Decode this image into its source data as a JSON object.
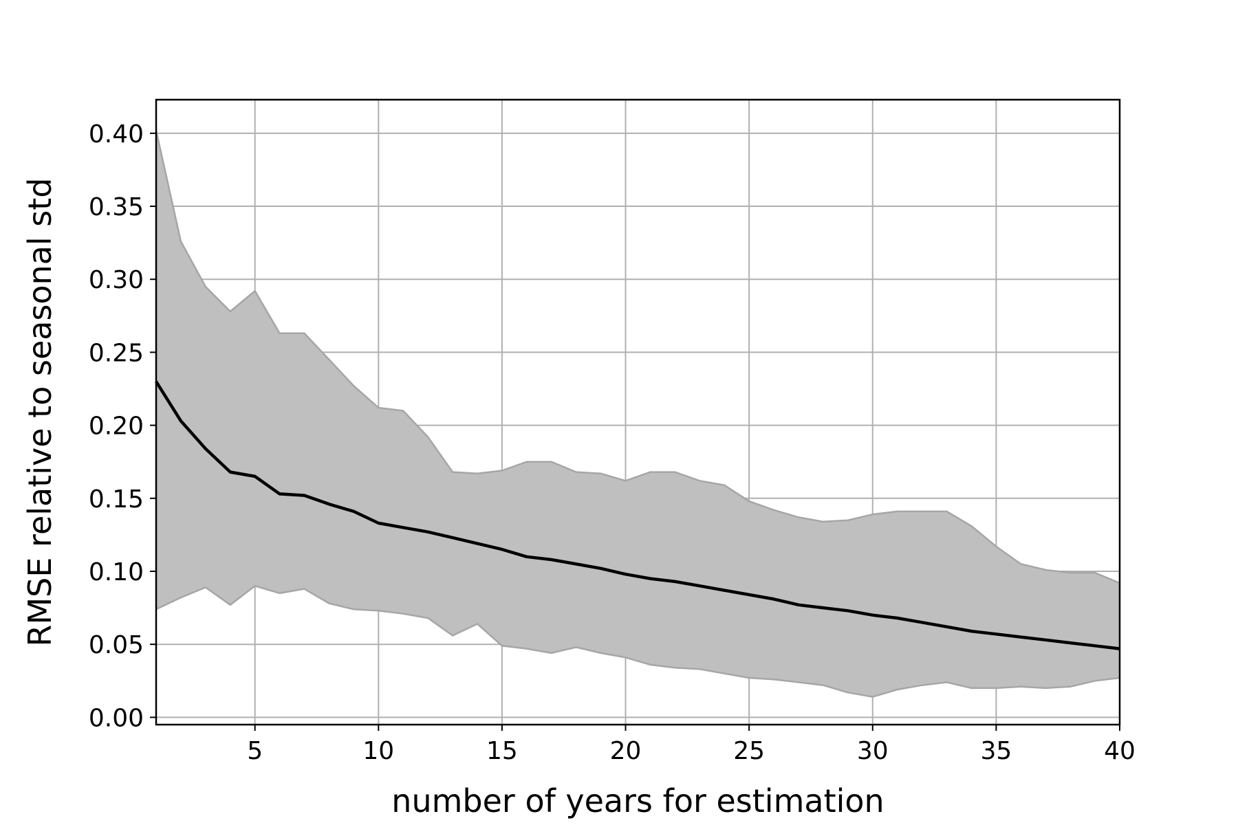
{
  "chart_data": {
    "type": "line",
    "xlabel": "number of years for estimation",
    "ylabel": "RMSE relative to seasonal std",
    "xlim": [
      1,
      40
    ],
    "ylim": [
      -0.005,
      0.423
    ],
    "xticks": [
      5,
      10,
      15,
      20,
      25,
      30,
      35,
      40
    ],
    "yticks": [
      0.0,
      0.05,
      0.1,
      0.15,
      0.2,
      0.25,
      0.3,
      0.35,
      0.4
    ],
    "grid": true,
    "legend": "none",
    "colors": {
      "line": "#000000",
      "band_fill": "#bfbfbf",
      "band_edge": "#a6a6a6",
      "grid": "#b0b0b0",
      "frame": "#000000"
    },
    "x": [
      1,
      2,
      3,
      4,
      5,
      6,
      7,
      8,
      9,
      10,
      11,
      12,
      13,
      14,
      15,
      16,
      17,
      18,
      19,
      20,
      21,
      22,
      23,
      24,
      25,
      26,
      27,
      28,
      29,
      30,
      31,
      32,
      33,
      34,
      35,
      36,
      37,
      38,
      39,
      40
    ],
    "series": [
      {
        "role": "mean",
        "values": [
          0.23,
          0.203,
          0.184,
          0.168,
          0.165,
          0.153,
          0.152,
          0.146,
          0.141,
          0.133,
          0.13,
          0.127,
          0.123,
          0.119,
          0.115,
          0.11,
          0.108,
          0.105,
          0.102,
          0.098,
          0.095,
          0.093,
          0.09,
          0.087,
          0.084,
          0.081,
          0.077,
          0.075,
          0.073,
          0.07,
          0.068,
          0.065,
          0.062,
          0.059,
          0.057,
          0.055,
          0.053,
          0.051,
          0.049,
          0.047
        ]
      },
      {
        "role": "upper-bound",
        "values": [
          0.402,
          0.326,
          0.295,
          0.278,
          0.292,
          0.263,
          0.263,
          0.245,
          0.227,
          0.212,
          0.21,
          0.192,
          0.168,
          0.167,
          0.169,
          0.175,
          0.175,
          0.168,
          0.167,
          0.162,
          0.168,
          0.168,
          0.162,
          0.159,
          0.148,
          0.142,
          0.137,
          0.134,
          0.135,
          0.139,
          0.141,
          0.141,
          0.141,
          0.131,
          0.117,
          0.105,
          0.101,
          0.099,
          0.099,
          0.092
        ]
      },
      {
        "role": "lower-bound",
        "values": [
          0.074,
          0.082,
          0.089,
          0.077,
          0.09,
          0.085,
          0.088,
          0.078,
          0.074,
          0.073,
          0.071,
          0.068,
          0.056,
          0.064,
          0.049,
          0.047,
          0.044,
          0.048,
          0.044,
          0.041,
          0.036,
          0.034,
          0.033,
          0.03,
          0.027,
          0.026,
          0.024,
          0.022,
          0.017,
          0.014,
          0.019,
          0.022,
          0.024,
          0.02,
          0.02,
          0.021,
          0.02,
          0.021,
          0.025,
          0.027
        ]
      }
    ]
  }
}
